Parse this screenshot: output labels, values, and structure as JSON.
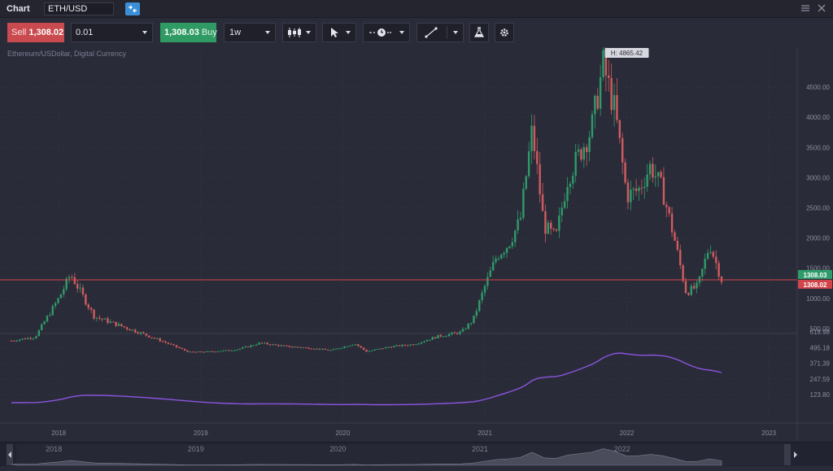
{
  "window": {
    "title": "Chart",
    "symbol": "ETH/USD"
  },
  "toolbar": {
    "sell_label": "Sell",
    "sell_price": "1,308.02",
    "quantity": "0.01",
    "buy_price": "1,308.03",
    "buy_label": "Buy",
    "interval": "1w"
  },
  "chart": {
    "description": "Ethereum/USDollar, Digital Currency",
    "high_label": "H: 4865.42",
    "ask_label": "1308.03",
    "bid_label": "1308.02",
    "price_ticks": [
      "4500.00",
      "4000.00",
      "3500.00",
      "3000.00",
      "2500.00",
      "2000.00",
      "1500.00",
      "1000.00",
      "500.00"
    ],
    "volume_ticks": [
      "618.98",
      "495.18",
      "371.39",
      "247.59",
      "123.80"
    ],
    "year_labels": [
      "2018",
      "2019",
      "2020",
      "2021",
      "2022",
      "2023"
    ],
    "nav_year_labels": [
      "2017",
      "2018",
      "2019",
      "2020",
      "2021",
      "2022"
    ],
    "colors": {
      "up": "#2e9c6a",
      "down": "#d05c5f",
      "indicator": "#8a55e0",
      "ask": "#2e9c6a",
      "bid": "#d0454b"
    }
  },
  "chart_data": {
    "type": "line",
    "title": "Ethereum/USDollar, Digital Currency",
    "series": [
      {
        "name": "ETH/USD",
        "x": [
          "2017-09",
          "2017-11",
          "2018-01",
          "2018-02",
          "2018-04",
          "2018-06",
          "2018-08",
          "2018-10",
          "2018-12",
          "2019-02",
          "2019-04",
          "2019-06",
          "2019-08",
          "2019-10",
          "2019-12",
          "2020-02",
          "2020-03",
          "2020-05",
          "2020-07",
          "2020-09",
          "2020-11",
          "2020-12",
          "2021-01",
          "2021-02",
          "2021-03",
          "2021-04",
          "2021-05",
          "2021-06",
          "2021-07",
          "2021-08",
          "2021-09",
          "2021-10",
          "2021-11",
          "2021-12",
          "2022-01",
          "2022-02",
          "2022-03",
          "2022-04",
          "2022-05",
          "2022-06",
          "2022-07",
          "2022-08",
          "2022-09"
        ],
        "values": [
          300,
          360,
          1000,
          1400,
          700,
          560,
          420,
          270,
          110,
          120,
          150,
          260,
          210,
          180,
          140,
          250,
          120,
          200,
          240,
          370,
          440,
          640,
          1200,
          1700,
          1900,
          2300,
          3800,
          2200,
          2000,
          3000,
          3400,
          3800,
          4865,
          4100,
          2700,
          2800,
          3200,
          2800,
          2000,
          1100,
          1200,
          1900,
          1308
        ]
      }
    ],
    "ylabel": "",
    "ylim": [
      0,
      4865
    ]
  }
}
